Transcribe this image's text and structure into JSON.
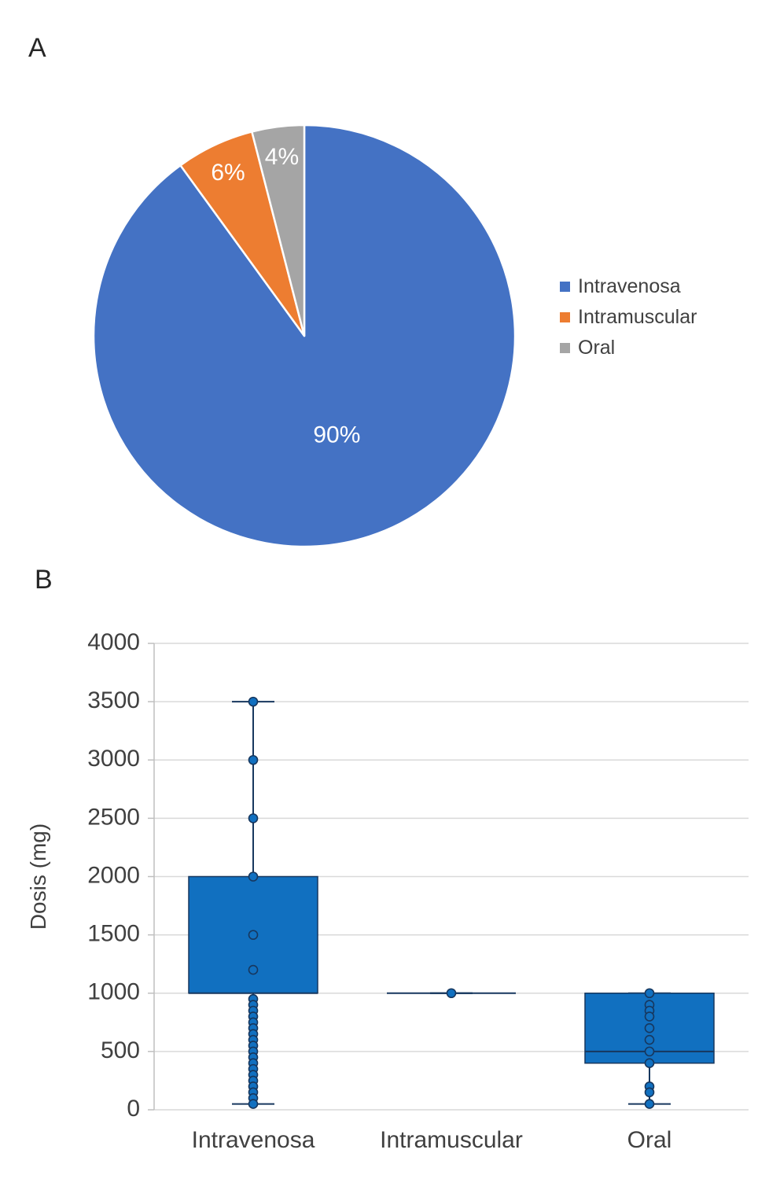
{
  "panelA": {
    "label": "A"
  },
  "panelB": {
    "label": "B"
  },
  "chart_data": [
    {
      "type": "pie",
      "title": "",
      "categories": [
        "Intravenosa",
        "Intramuscular",
        "Oral"
      ],
      "values": [
        90,
        6,
        4
      ],
      "labels": [
        "90%",
        "6%",
        "4%"
      ],
      "colors": [
        "#4472C4",
        "#ED7D31",
        "#A5A5A5"
      ],
      "label_color": "#FFFFFF",
      "legend_position": "right",
      "start_angle_deg": 0,
      "direction": "clockwise"
    },
    {
      "type": "boxplot",
      "title": "",
      "categories": [
        "Intravenosa",
        "Intramuscular",
        "Oral"
      ],
      "xlabel": "",
      "ylabel": "Dosis (mg)",
      "ylim": [
        0,
        4000
      ],
      "ytick_step": 500,
      "yticks": [
        0,
        500,
        1000,
        1500,
        2000,
        2500,
        3000,
        3500,
        4000
      ],
      "grid": true,
      "grid_color": "#D9D9D9",
      "axis_text_color": "#404040",
      "box_color": "#1170C0",
      "line_color": "#17375E",
      "series": [
        {
          "name": "Intravenosa",
          "q1": 1000,
          "median": 1000,
          "q3": 2000,
          "whisker_low": 50,
          "whisker_high": 3500,
          "points": [
            3500,
            3000,
            2500,
            2000,
            1500,
            1200,
            950,
            900,
            850,
            800,
            750,
            700,
            650,
            600,
            550,
            500,
            450,
            400,
            350,
            300,
            250,
            200,
            150,
            100,
            50
          ]
        },
        {
          "name": "Intramuscular",
          "q1": 1000,
          "median": 1000,
          "q3": 1000,
          "whisker_low": 1000,
          "whisker_high": 1000,
          "points": [
            1000
          ]
        },
        {
          "name": "Oral",
          "q1": 400,
          "median": 500,
          "q3": 1000,
          "whisker_low": 50,
          "whisker_high": 1000,
          "points": [
            1000,
            900,
            850,
            800,
            700,
            600,
            500,
            400,
            200,
            150,
            50
          ]
        }
      ]
    }
  ]
}
